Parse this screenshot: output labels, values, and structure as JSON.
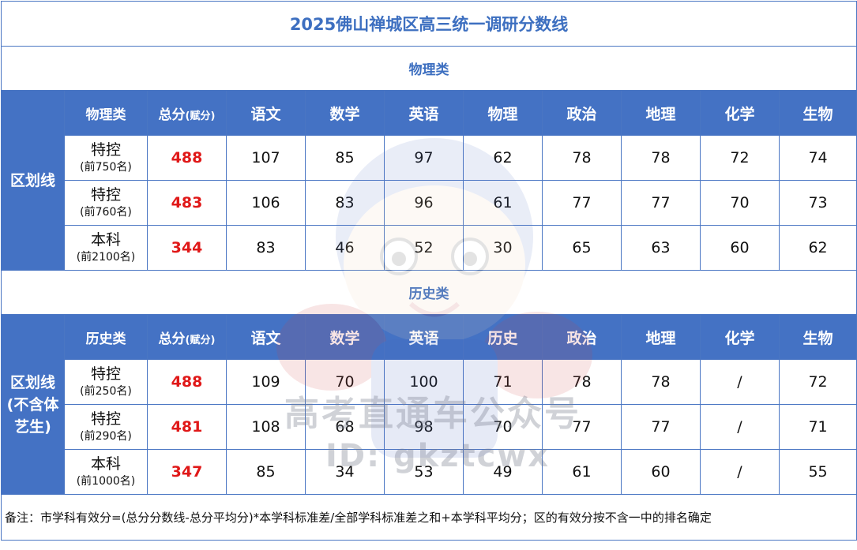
{
  "title": "2025佛山禅城区高三统一调研分数线",
  "physics": {
    "section_title": "物理类",
    "region_label": "区划线",
    "headers": [
      "物理类",
      "总分",
      "(赋分)",
      "语文",
      "数学",
      "英语",
      "物理",
      "政治",
      "地理",
      "化学",
      "生物"
    ],
    "rows": [
      {
        "level": "特控",
        "rank": "(前750名)",
        "total": "488",
        "scores": [
          "107",
          "85",
          "97",
          "62",
          "78",
          "78",
          "72",
          "74"
        ]
      },
      {
        "level": "特控",
        "rank": "(前760名)",
        "total": "483",
        "scores": [
          "106",
          "83",
          "96",
          "61",
          "77",
          "77",
          "70",
          "73"
        ]
      },
      {
        "level": "本科",
        "rank": "(前2100名)",
        "total": "344",
        "scores": [
          "83",
          "46",
          "52",
          "30",
          "65",
          "63",
          "60",
          "62"
        ]
      }
    ]
  },
  "history": {
    "section_title": "历史类",
    "region_label_lines": [
      "区划线",
      "(不含体",
      "艺生)"
    ],
    "headers": [
      "历史类",
      "总分",
      "(赋分)",
      "语文",
      "数学",
      "英语",
      "历史",
      "政治",
      "地理",
      "化学",
      "生物"
    ],
    "rows": [
      {
        "level": "特控",
        "rank": "(前250名)",
        "total": "488",
        "scores": [
          "109",
          "70",
          "100",
          "71",
          "78",
          "78",
          "/",
          "72"
        ]
      },
      {
        "level": "特控",
        "rank": "(前290名)",
        "total": "481",
        "scores": [
          "108",
          "68",
          "98",
          "70",
          "77",
          "77",
          "/",
          "71"
        ]
      },
      {
        "level": "本科",
        "rank": "(前1000名)",
        "total": "347",
        "scores": [
          "85",
          "34",
          "53",
          "49",
          "61",
          "60",
          "/",
          "55"
        ]
      }
    ]
  },
  "note": "备注：市学科有效分=(总分分数线-总分平均分)*本学科标准差/全部学科标准差之和+本学科平均分；区的有效分按不含一中的排名确定",
  "watermark": {
    "text": "高考直通车公众号",
    "id": "ID: gkztcwx"
  },
  "colors": {
    "header_bg": "#4472c4",
    "title": "#3d6fc0",
    "total": "#e01818",
    "border": "#4a76c3"
  }
}
